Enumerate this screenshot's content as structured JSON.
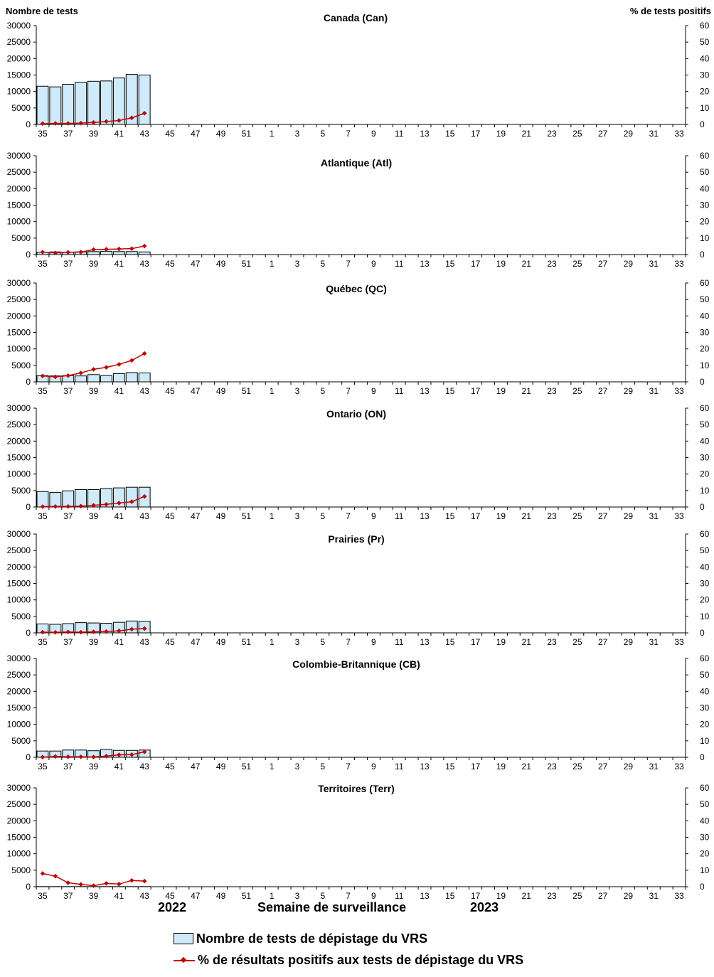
{
  "left_axis_title": "Nombre de tests",
  "right_axis_title": "% de tests positifs",
  "x_axis_title": "Semaine de surveillance",
  "year_labels": [
    "2022",
    "2023"
  ],
  "legend": {
    "bars": "Nombre de tests de dépistage du VRS",
    "line": "% de résultats positifs aux tests de dépistage du VRS"
  },
  "colors": {
    "bar_fill": "#cfeafa",
    "bar_stroke": "#000000",
    "line": "#c00000",
    "axis": "#000000"
  },
  "chart_data": [
    {
      "type": "bar+line",
      "title": "Canada (Can)",
      "weeks": [
        35,
        36,
        37,
        38,
        39,
        40,
        41,
        42,
        43
      ],
      "tests": [
        11600,
        11400,
        12200,
        12800,
        13100,
        13200,
        14100,
        15200,
        15000
      ],
      "pct_positive": [
        0.5,
        0.6,
        0.6,
        0.8,
        1.2,
        1.8,
        2.4,
        4.0,
        6.8
      ],
      "ylim_left": [
        0,
        30000
      ],
      "ylim_right": [
        0,
        60
      ],
      "xticks": [
        35,
        37,
        39,
        41,
        43,
        45,
        47,
        49,
        51,
        1,
        3,
        5,
        7,
        9,
        11,
        13,
        15,
        17,
        19,
        21,
        23,
        25,
        27,
        29,
        31,
        33
      ]
    },
    {
      "type": "bar+line",
      "title": "Atlantique (Atl)",
      "weeks": [
        35,
        36,
        37,
        38,
        39,
        40,
        41,
        42,
        43
      ],
      "tests": [
        700,
        800,
        700,
        800,
        900,
        1000,
        900,
        900,
        800
      ],
      "pct_positive": [
        1.5,
        1.0,
        1.4,
        1.5,
        3.0,
        3.2,
        3.4,
        3.6,
        5.2
      ],
      "ylim_left": [
        0,
        30000
      ],
      "ylim_right": [
        0,
        60
      ],
      "xticks": [
        35,
        37,
        39,
        41,
        43,
        45,
        47,
        49,
        51,
        1,
        3,
        5,
        7,
        9,
        11,
        13,
        15,
        17,
        19,
        21,
        23,
        25,
        27,
        29,
        31,
        33
      ]
    },
    {
      "type": "bar+line",
      "title": "Québec (QC)",
      "weeks": [
        35,
        36,
        37,
        38,
        39,
        40,
        41,
        42,
        43
      ],
      "tests": [
        1900,
        1800,
        1900,
        1800,
        2200,
        1900,
        2500,
        2800,
        2700
      ],
      "pct_positive": [
        3.6,
        3.0,
        3.8,
        5.4,
        7.6,
        8.8,
        10.6,
        13.0,
        17.2
      ],
      "ylim_left": [
        0,
        30000
      ],
      "ylim_right": [
        0,
        60
      ],
      "xticks": [
        35,
        37,
        39,
        41,
        43,
        45,
        47,
        49,
        51,
        1,
        3,
        5,
        7,
        9,
        11,
        13,
        15,
        17,
        19,
        21,
        23,
        25,
        27,
        29,
        31,
        33
      ]
    },
    {
      "type": "bar+line",
      "title": "Ontario (ON)",
      "weeks": [
        35,
        36,
        37,
        38,
        39,
        40,
        41,
        42,
        43
      ],
      "tests": [
        4700,
        4400,
        4900,
        5300,
        5300,
        5600,
        5800,
        6000,
        6000
      ],
      "pct_positive": [
        0.2,
        0.3,
        0.3,
        0.5,
        1.0,
        1.6,
        2.4,
        3.2,
        6.4
      ],
      "ylim_left": [
        0,
        30000
      ],
      "ylim_right": [
        0,
        60
      ],
      "xticks": [
        35,
        37,
        39,
        41,
        43,
        45,
        47,
        49,
        51,
        1,
        3,
        5,
        7,
        9,
        11,
        13,
        15,
        17,
        19,
        21,
        23,
        25,
        27,
        29,
        31,
        33
      ]
    },
    {
      "type": "bar+line",
      "title": "Prairies (Pr)",
      "weeks": [
        35,
        36,
        37,
        38,
        39,
        40,
        41,
        42,
        43
      ],
      "tests": [
        2700,
        2600,
        2800,
        3100,
        3000,
        2900,
        3200,
        3600,
        3500
      ],
      "pct_positive": [
        0.4,
        0.3,
        0.5,
        0.4,
        0.6,
        0.8,
        1.2,
        2.2,
        2.6
      ],
      "ylim_left": [
        0,
        30000
      ],
      "ylim_right": [
        0,
        60
      ],
      "xticks": [
        35,
        37,
        39,
        41,
        43,
        45,
        47,
        49,
        51,
        1,
        3,
        5,
        7,
        9,
        11,
        13,
        15,
        17,
        19,
        21,
        23,
        25,
        27,
        29,
        31,
        33
      ]
    },
    {
      "type": "bar+line",
      "title": "Colombie-Britannique (CB)",
      "weeks": [
        35,
        36,
        37,
        38,
        39,
        40,
        41,
        42,
        43
      ],
      "tests": [
        1900,
        1900,
        2200,
        2200,
        2000,
        2400,
        2100,
        2100,
        2200
      ],
      "pct_positive": [
        0.1,
        0.5,
        0.3,
        0.3,
        0.2,
        0.7,
        1.5,
        1.6,
        3.3
      ],
      "ylim_left": [
        0,
        30000
      ],
      "ylim_right": [
        0,
        60
      ],
      "xticks": [
        35,
        37,
        39,
        41,
        43,
        45,
        47,
        49,
        51,
        1,
        3,
        5,
        7,
        9,
        11,
        13,
        15,
        17,
        19,
        21,
        23,
        25,
        27,
        29,
        31,
        33
      ]
    },
    {
      "type": "bar+line",
      "title": "Territoires (Terr)",
      "weeks": [
        35,
        36,
        37,
        38,
        39,
        40,
        41,
        42,
        43
      ],
      "tests": [
        40,
        40,
        40,
        40,
        40,
        40,
        40,
        40,
        40
      ],
      "pct_positive": [
        8.0,
        6.4,
        2.4,
        1.4,
        0.6,
        2.0,
        1.6,
        3.8,
        3.4
      ],
      "ylim_left": [
        0,
        30000
      ],
      "ylim_right": [
        0,
        60
      ],
      "xticks": [
        35,
        37,
        39,
        41,
        43,
        45,
        47,
        49,
        51,
        1,
        3,
        5,
        7,
        9,
        11,
        13,
        15,
        17,
        19,
        21,
        23,
        25,
        27,
        29,
        31,
        33
      ]
    }
  ]
}
